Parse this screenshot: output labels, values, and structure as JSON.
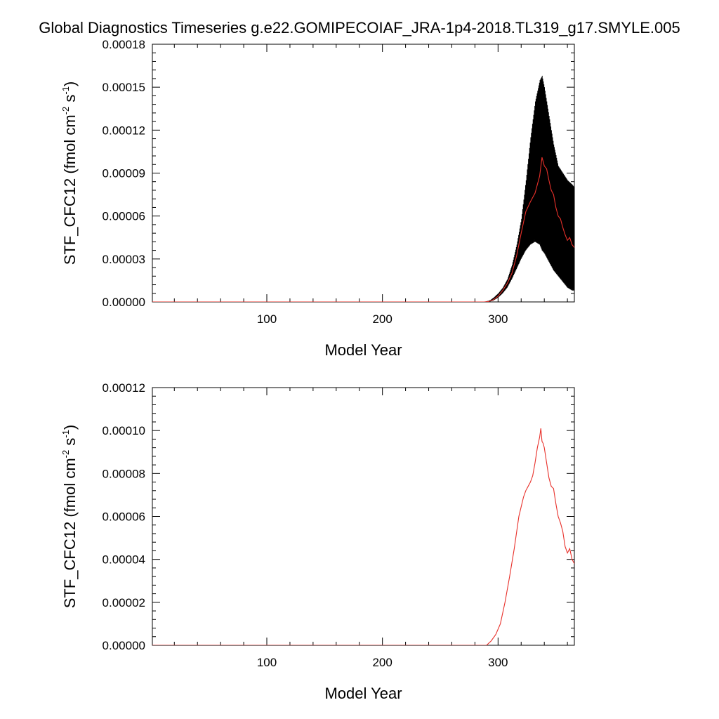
{
  "page": {
    "title": "Global Diagnostics Timeseries g.e22.GOMIPECOIAF_JRA-1p4-2018.TL319_g17.SMYLE.005"
  },
  "colors": {
    "monthly": "#000000",
    "annual": "#e8302a",
    "axis": "#000000",
    "background": "#ffffff"
  },
  "chart_data": [
    {
      "type": "line",
      "panel": "top",
      "xlabel": "Model Year",
      "ylabel_parts": {
        "base": "STF_CFC12 (fmol cm",
        "exp1": "-2",
        "mid": " s",
        "exp2": "-1",
        "end": ")"
      },
      "xlim": [
        1,
        366
      ],
      "ylim": [
        0,
        0.00018
      ],
      "xticks": [
        100,
        200,
        300
      ],
      "xtick_labels": [
        "100",
        "200",
        "300"
      ],
      "yticks": [
        0,
        3e-05,
        6e-05,
        9e-05,
        0.00012,
        0.00015,
        0.00018
      ],
      "ytick_labels": [
        "0.00000",
        "0.00003",
        "0.00006",
        "0.00009",
        "0.00012",
        "0.00015",
        "0.00018"
      ],
      "series": [
        {
          "style": "monthly-envelope",
          "x": [
            1,
            288,
            292,
            296,
            300,
            304,
            308,
            312,
            316,
            320,
            324,
            328,
            332,
            336,
            338,
            340,
            344,
            348,
            352,
            356,
            360,
            364,
            366
          ],
          "low": [
            0,
            0,
            1e-07,
            1e-06,
            3e-06,
            6e-06,
            1e-05,
            1.6e-05,
            2.3e-05,
            3e-05,
            3.6e-05,
            4e-05,
            4.2e-05,
            4e-05,
            3.6e-05,
            3.4e-05,
            2.8e-05,
            2.2e-05,
            1.8e-05,
            1.4e-05,
            1e-05,
            8e-06,
            8e-06
          ],
          "high": [
            0,
            0,
            6e-07,
            3e-06,
            6e-06,
            1e-05,
            1.6e-05,
            2.6e-05,
            4e-05,
            5.8e-05,
            8.5e-05,
            0.000115,
            0.00014,
            0.000155,
            0.000158,
            0.00015,
            0.00013,
            0.00011,
            9.5e-05,
            9e-05,
            8.5e-05,
            8.2e-05,
            8e-05
          ]
        },
        {
          "style": "annual",
          "x": [
            1,
            288,
            292,
            296,
            300,
            304,
            308,
            312,
            316,
            320,
            324,
            328,
            332,
            336,
            338,
            340,
            342,
            344,
            346,
            348,
            350,
            352,
            354,
            356,
            358,
            360,
            362,
            364,
            366
          ],
          "y": [
            0,
            0,
            3e-07,
            1.5e-06,
            4e-06,
            8e-06,
            1.3e-05,
            2e-05,
            3.2e-05,
            4.8e-05,
            6.3e-05,
            7e-05,
            7.6e-05,
            8.8e-05,
            0.000101,
            9.5e-05,
            9.3e-05,
            8.5e-05,
            7.8e-05,
            7.5e-05,
            6.6e-05,
            6e-05,
            5.8e-05,
            5.2e-05,
            4.7e-05,
            4.3e-05,
            4.5e-05,
            4e-05,
            3.8e-05
          ]
        }
      ]
    },
    {
      "type": "line",
      "panel": "bottom",
      "xlabel": "Model Year",
      "ylabel_parts": {
        "base": "STF_CFC12 (fmol cm",
        "exp1": "-2",
        "mid": " s",
        "exp2": "-1",
        "end": ")"
      },
      "xlim": [
        1,
        366
      ],
      "ylim": [
        0,
        0.00012
      ],
      "xticks": [
        100,
        200,
        300
      ],
      "xtick_labels": [
        "100",
        "200",
        "300"
      ],
      "yticks": [
        0,
        2e-05,
        4e-05,
        6e-05,
        8e-05,
        0.0001,
        0.00012
      ],
      "ytick_labels": [
        "0.00000",
        "0.00002",
        "0.00004",
        "0.00006",
        "0.00008",
        "0.00010",
        "0.00012"
      ],
      "series": [
        {
          "style": "annual",
          "x": [
            1,
            290,
            294,
            298,
            302,
            306,
            310,
            314,
            318,
            322,
            324,
            326,
            328,
            330,
            332,
            334,
            336,
            337,
            338,
            339,
            340,
            342,
            344,
            346,
            348,
            350,
            352,
            354,
            356,
            358,
            360,
            362,
            364,
            366
          ],
          "y": [
            0,
            0,
            2e-06,
            5e-06,
            1e-05,
            2e-05,
            3.2e-05,
            4.5e-05,
            6e-05,
            6.9e-05,
            7.2e-05,
            7.4e-05,
            7.6e-05,
            7.9e-05,
            8.5e-05,
            9.2e-05,
            9.7e-05,
            0.000101,
            9.5e-05,
            9.4e-05,
            9.2e-05,
            8.5e-05,
            7.8e-05,
            7.4e-05,
            7.3e-05,
            6.6e-05,
            6e-05,
            5.7e-05,
            5.3e-05,
            4.6e-05,
            4.3e-05,
            4.5e-05,
            4e-05,
            3.8e-05
          ]
        }
      ]
    }
  ]
}
